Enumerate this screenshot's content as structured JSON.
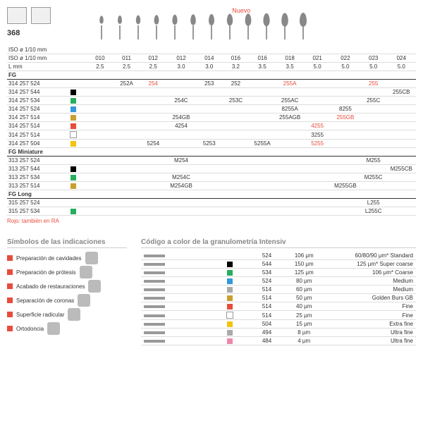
{
  "nuevo": "Nuevo",
  "model": "368",
  "headers": {
    "iso": "ISO ø 1/10 mm",
    "l": "L mm",
    "fg": "FG",
    "fgm": "FG Miniature",
    "fgl": "FG Long"
  },
  "sizes": [
    "010",
    "011",
    "012",
    "012",
    "014",
    "016",
    "016",
    "018",
    "021",
    "022",
    "023",
    "024"
  ],
  "lmm": [
    "2.5",
    "2.5",
    "2.5",
    "3.0",
    "3.0",
    "3.2",
    "3.5",
    "3.5",
    "5.0",
    "5.0",
    "5.0",
    "5.0"
  ],
  "fg_rows": [
    {
      "code": "314 257 524",
      "c": "",
      "v": [
        "",
        "252A",
        "254",
        "",
        "253",
        "252",
        "",
        "255A",
        "",
        "",
        "255",
        ""
      ],
      "red": [
        2,
        7,
        10
      ]
    },
    {
      "code": "314 257 544",
      "c": "black",
      "v": [
        "",
        "",
        "",
        "",
        "",
        "",
        "",
        "",
        "",
        "",
        "",
        "255CB"
      ]
    },
    {
      "code": "314 257 534",
      "c": "green",
      "v": [
        "",
        "",
        "",
        "254C",
        "",
        "253C",
        "",
        "255AC",
        "",
        "",
        "255C",
        ""
      ]
    },
    {
      "code": "314 257 524",
      "c": "blue",
      "v": [
        "",
        "",
        "",
        "",
        "",
        "",
        "",
        "8255A",
        "",
        "8255",
        "",
        ""
      ]
    },
    {
      "code": "314 257 514",
      "c": "gold",
      "v": [
        "",
        "",
        "",
        "254GB",
        "",
        "",
        "",
        "255AGB",
        "",
        "255GB",
        "",
        ""
      ],
      "red": [
        9
      ]
    },
    {
      "code": "314 257 514",
      "c": "red",
      "v": [
        "",
        "",
        "",
        "4254",
        "",
        "",
        "",
        "",
        "4255",
        "",
        "",
        ""
      ],
      "red": [
        8
      ]
    },
    {
      "code": "314 257 514",
      "c": "white",
      "v": [
        "",
        "",
        "",
        "",
        "",
        "",
        "",
        "",
        "3255",
        "",
        "",
        ""
      ]
    },
    {
      "code": "314 257 504",
      "c": "yellow",
      "v": [
        "",
        "",
        "5254",
        "",
        "5253",
        "",
        "5255A",
        "",
        "5255",
        "",
        "",
        ""
      ],
      "red": [
        8
      ]
    }
  ],
  "fgm_rows": [
    {
      "code": "313 257 524",
      "c": "",
      "v": [
        "",
        "",
        "",
        "M254",
        "",
        "",
        "",
        "",
        "",
        "",
        "M255",
        ""
      ]
    },
    {
      "code": "313 257 544",
      "c": "black",
      "v": [
        "",
        "",
        "",
        "",
        "",
        "",
        "",
        "",
        "",
        "",
        "",
        "M255CB"
      ]
    },
    {
      "code": "313 257 534",
      "c": "green",
      "v": [
        "",
        "",
        "",
        "M254C",
        "",
        "",
        "",
        "",
        "",
        "",
        "M255C",
        ""
      ]
    },
    {
      "code": "313 257 514",
      "c": "gold",
      "v": [
        "",
        "",
        "",
        "M254GB",
        "",
        "",
        "",
        "",
        "",
        "M255GB",
        "",
        ""
      ]
    }
  ],
  "fgl_rows": [
    {
      "code": "315 257 524",
      "c": "",
      "v": [
        "",
        "",
        "",
        "",
        "",
        "",
        "",
        "",
        "",
        "",
        "L255",
        ""
      ]
    },
    {
      "code": "315 257 534",
      "c": "green",
      "v": [
        "",
        "",
        "",
        "",
        "",
        "",
        "",
        "",
        "",
        "",
        "L255C",
        ""
      ]
    }
  ],
  "footnote": "Rojo: también en RA",
  "sym_title": "Símbolos de las indicaciones",
  "syms": [
    "Preparación de cavidades",
    "Preparación de prótesis",
    "Acabado de restauraciones",
    "Separación de coronas",
    "Superficie radicular",
    "Ortodoncia"
  ],
  "grain_title": "Código a color de la granulometría Intensiv",
  "grains": [
    {
      "n": "524",
      "c": "",
      "u": "106 μm",
      "r": "60/80/90 μm* Standard"
    },
    {
      "n": "544",
      "c": "black",
      "u": "150 μm",
      "r": "125 μm* Super coarse"
    },
    {
      "n": "534",
      "c": "green",
      "u": "125 μm",
      "r": "106 μm* Coarse"
    },
    {
      "n": "524",
      "c": "blue",
      "u": "80 μm",
      "r": "Medium"
    },
    {
      "n": "514",
      "c": "grey",
      "u": "60 μm",
      "r": "Medium"
    },
    {
      "n": "514",
      "c": "gold",
      "u": "50 μm",
      "r": "Golden Burs GB"
    },
    {
      "n": "514",
      "c": "red",
      "u": "40 μm",
      "r": "Fine"
    },
    {
      "n": "514",
      "c": "white",
      "u": "25 μm",
      "r": "Fine"
    },
    {
      "n": "504",
      "c": "yellow",
      "u": "15 μm",
      "r": "Extra fine"
    },
    {
      "n": "494",
      "c": "grey",
      "u": "8 μm",
      "r": "Ultra fine"
    },
    {
      "n": "484",
      "c": "pink",
      "u": "4 μm",
      "r": "Ultra fine"
    }
  ]
}
